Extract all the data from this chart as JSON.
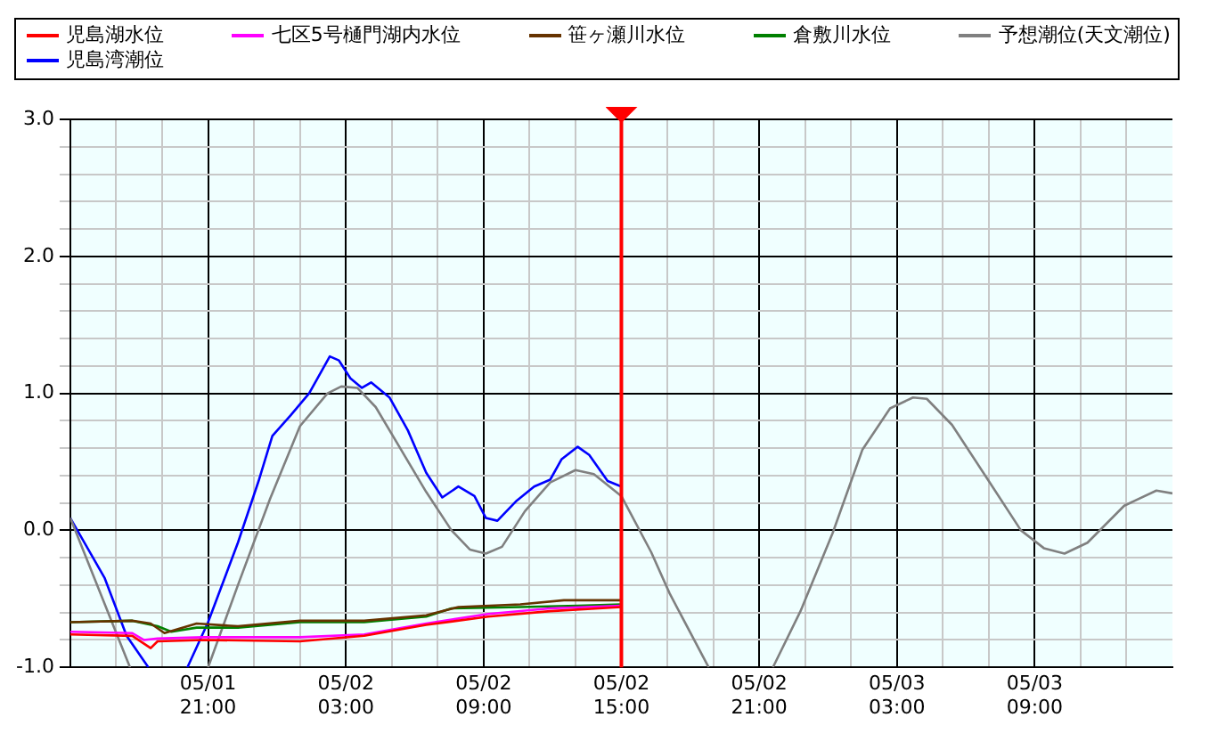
{
  "chart_data": {
    "type": "line",
    "marker": "none",
    "grid": true,
    "legend": "top",
    "xlim": [
      "--05-01T15:00",
      "--05-03T15:00"
    ],
    "ylim": [
      -1,
      3
    ],
    "xticks": [
      {
        "value": "--05-01T17:00",
        "label": null
      },
      {
        "value": "--05-01T19:00",
        "label": null
      },
      {
        "value": "--05-01T21:00",
        "label": "05/01\n21:00"
      },
      {
        "value": "--05-01T23:00",
        "label": null
      },
      {
        "value": "--05-02T01:00",
        "label": null
      },
      {
        "value": "--05-02T03:00",
        "label": "05/02\n03:00"
      },
      {
        "value": "--05-02T05:00",
        "label": null
      },
      {
        "value": "--05-02T07:00",
        "label": null
      },
      {
        "value": "--05-02T09:00",
        "label": "05/02\n09:00"
      },
      {
        "value": "--05-02T11:00",
        "label": null
      },
      {
        "value": "--05-02T13:00",
        "label": null
      },
      {
        "value": "--05-02T15:00",
        "label": "05/02\n15:00"
      },
      {
        "value": "--05-02T17:00",
        "label": null
      },
      {
        "value": "--05-02T19:00",
        "label": null
      },
      {
        "value": "--05-02T21:00",
        "label": "05/02\n21:00"
      },
      {
        "value": "--05-02T23:00",
        "label": null
      },
      {
        "value": "--05-03T01:00",
        "label": null
      },
      {
        "value": "--05-03T03:00",
        "label": "05/03\n03:00"
      },
      {
        "value": "--05-03T05:00",
        "label": null
      },
      {
        "value": "--05-03T07:00",
        "label": null
      },
      {
        "value": "--05-03T09:00",
        "label": "05/03\n09:00"
      },
      {
        "value": "--05-03T11:00",
        "label": null
      },
      {
        "value": "--05-03T13:00",
        "label": null
      }
    ],
    "yticks": [
      {
        "value": -1,
        "label": "-1.0"
      },
      {
        "value": -0.8,
        "label": null
      },
      {
        "value": -0.6,
        "label": null
      },
      {
        "value": -0.4,
        "label": null
      },
      {
        "value": -0.2,
        "label": null
      },
      {
        "value": 0,
        "label": "0.0"
      },
      {
        "value": 0.2,
        "label": null
      },
      {
        "value": 0.4,
        "label": null
      },
      {
        "value": 0.6,
        "label": null
      },
      {
        "value": 0.8,
        "label": null
      },
      {
        "value": 1,
        "label": "1.0"
      },
      {
        "value": 1.2,
        "label": null
      },
      {
        "value": 1.4,
        "label": null
      },
      {
        "value": 1.6,
        "label": null
      },
      {
        "value": 1.8,
        "label": null
      },
      {
        "value": 2,
        "label": "2.0"
      },
      {
        "value": 2.2,
        "label": null
      },
      {
        "value": 2.4,
        "label": null
      },
      {
        "value": 2.6,
        "label": null
      },
      {
        "value": 2.8,
        "label": null
      },
      {
        "value": 3,
        "label": "3.0"
      }
    ],
    "ref_lines": [
      {
        "axis": "x",
        "value": "--05-02T15:00",
        "color": "#ff0000"
      }
    ],
    "series": [
      {
        "name": "児島湖水位",
        "color": "#ff0000",
        "x": [
          "--05-01T15:00",
          "--05-01T17:42",
          "--05-01T18:30",
          "--05-01T18:48",
          "--05-01T20:48",
          "--05-02T01:00",
          "--05-02T03:48",
          "--05-02T06:30",
          "--05-02T09:12",
          "--05-02T11:54",
          "--05-02T15:00"
        ],
        "values": [
          -0.76,
          -0.77,
          -0.86,
          -0.81,
          -0.8,
          -0.81,
          -0.77,
          -0.69,
          -0.63,
          -0.59,
          -0.56
        ]
      },
      {
        "name": "七区5号樋門湖内水位",
        "color": "#ff00ff",
        "x": [
          "--05-01T15:00",
          "--05-01T17:42",
          "--05-01T18:12",
          "--05-01T18:48",
          "--05-01T20:48",
          "--05-02T01:00",
          "--05-02T03:48",
          "--05-02T06:30",
          "--05-02T09:12",
          "--05-02T11:54",
          "--05-02T15:00"
        ],
        "values": [
          -0.74,
          -0.75,
          -0.8,
          -0.79,
          -0.78,
          -0.78,
          -0.76,
          -0.68,
          -0.61,
          -0.57,
          -0.55
        ]
      },
      {
        "name": "笹ヶ瀬川水位",
        "color": "#663300",
        "x": [
          "--05-01T15:00",
          "--05-01T17:42",
          "--05-01T18:30",
          "--05-01T19:06",
          "--05-01T20:30",
          "--05-01T22:18",
          "--05-02T01:00",
          "--05-02T03:48",
          "--05-02T06:30",
          "--05-02T07:54",
          "--05-02T10:36",
          "--05-02T12:30",
          "--05-02T15:00"
        ],
        "values": [
          -0.67,
          -0.66,
          -0.68,
          -0.75,
          -0.68,
          -0.7,
          -0.66,
          -0.66,
          -0.62,
          -0.56,
          -0.54,
          -0.51,
          -0.51
        ]
      },
      {
        "name": "倉敷川水位",
        "color": "#008000",
        "x": [
          "--05-01T15:00",
          "--05-01T17:42",
          "--05-01T18:48",
          "--05-01T19:24",
          "--05-01T20:30",
          "--05-01T22:18",
          "--05-02T01:00",
          "--05-02T03:48",
          "--05-02T06:30",
          "--05-02T07:36",
          "--05-02T10:36",
          "--05-02T13:06",
          "--05-02T15:00"
        ],
        "values": [
          -0.67,
          -0.66,
          -0.7,
          -0.74,
          -0.71,
          -0.71,
          -0.67,
          -0.67,
          -0.63,
          -0.57,
          -0.56,
          -0.55,
          -0.54
        ]
      },
      {
        "name": "予想潮位(天文潮位)",
        "color": "#808080",
        "x": [
          "--05-01T15:00",
          "--05-01T17:36",
          "--05-01T17:42",
          "--05-01T20:54",
          "--05-01T21:00",
          "--05-01T22:18",
          "--05-01T23:42",
          "--05-02T01:00",
          "--05-02T02:12",
          "--05-02T02:48",
          "--05-02T03:30",
          "--05-02T04:18",
          "--05-02T05:24",
          "--05-02T06:30",
          "--05-02T07:36",
          "--05-02T08:24",
          "--05-02T09:06",
          "--05-02T09:48",
          "--05-02T10:48",
          "--05-02T11:54",
          "--05-02T13:00",
          "--05-02T13:48",
          "--05-02T15:00",
          "--05-02T16:18",
          "--05-02T17:06",
          "--05-02T18:48",
          "--05-02T18:54",
          "--05-02T21:30",
          "--05-02T21:36",
          "--05-02T22:48",
          "--05-03T00:12",
          "--05-03T01:30",
          "--05-03T02:42",
          "--05-03T03:42",
          "--05-03T04:18",
          "--05-03T05:24",
          "--05-03T07:00",
          "--05-03T08:24",
          "--05-03T09:24",
          "--05-03T10:18",
          "--05-03T11:18",
          "--05-03T12:54",
          "--05-03T14:18",
          "--05-03T15:00"
        ],
        "values": [
          0.09,
          -1,
          null,
          null,
          -1,
          -0.4,
          0.23,
          0.76,
          1,
          1.05,
          1.04,
          0.9,
          0.59,
          0.28,
          0,
          -0.14,
          -0.17,
          -0.12,
          0.14,
          0.35,
          0.44,
          0.41,
          0.25,
          -0.16,
          -0.46,
          -1,
          null,
          null,
          -1,
          -0.59,
          -0.02,
          0.59,
          0.89,
          0.97,
          0.96,
          0.77,
          0.36,
          0,
          -0.13,
          -0.17,
          -0.09,
          0.18,
          0.29,
          0.27
        ]
      },
      {
        "name": "児島湾潮位",
        "color": "#0000ff",
        "x": [
          "--05-01T15:00",
          "--05-01T16:30",
          "--05-01T17:27",
          "--05-01T18:24",
          "--05-01T18:30",
          "--05-01T20:00",
          "--05-01T20:06",
          "--05-01T21:00",
          "--05-01T22:18",
          "--05-01T23:12",
          "--05-01T23:48",
          "--05-02T00:36",
          "--05-02T01:24",
          "--05-02T02:18",
          "--05-02T02:42",
          "--05-02T03:12",
          "--05-02T03:42",
          "--05-02T04:06",
          "--05-02T04:54",
          "--05-02T05:42",
          "--05-02T06:30",
          "--05-02T07:12",
          "--05-02T07:54",
          "--05-02T08:36",
          "--05-02T09:06",
          "--05-02T09:36",
          "--05-02T10:24",
          "--05-02T11:12",
          "--05-02T11:54",
          "--05-02T12:24",
          "--05-02T13:06",
          "--05-02T13:36",
          "--05-02T14:24",
          "--05-02T15:00"
        ],
        "values": [
          0.09,
          -0.35,
          -0.77,
          -1,
          null,
          null,
          -1,
          -0.67,
          -0.09,
          0.36,
          0.69,
          0.84,
          1,
          1.27,
          1.24,
          1.11,
          1.04,
          1.08,
          0.97,
          0.73,
          0.42,
          0.24,
          0.32,
          0.25,
          0.09,
          0.07,
          0.21,
          0.32,
          0.37,
          0.52,
          0.61,
          0.55,
          0.36,
          0.32
        ]
      }
    ]
  }
}
